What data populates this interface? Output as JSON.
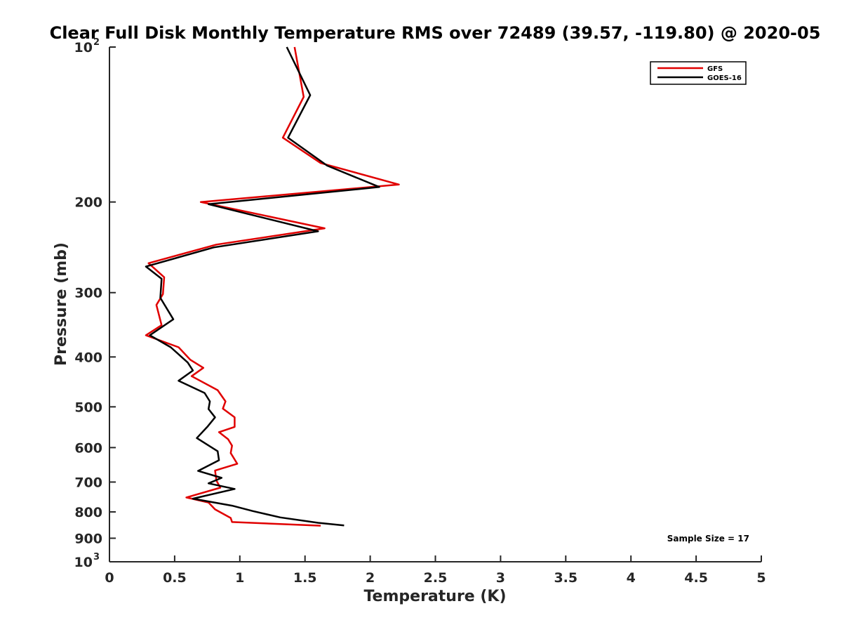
{
  "chart_data": {
    "type": "line",
    "title": "Clear Full Disk Monthly Temperature RMS over 72489 (39.57, -119.80) @ 2020-05",
    "xlabel": "Temperature (K)",
    "ylabel": "Pressure (mb)",
    "xlim": [
      0,
      5
    ],
    "ylim": [
      100,
      1000
    ],
    "yscale": "log",
    "y_reversed": true,
    "grid": false,
    "legend_position": "top-right",
    "x_ticks": [
      {
        "value": 0,
        "label": "0"
      },
      {
        "value": 0.5,
        "label": "0.5"
      },
      {
        "value": 1,
        "label": "1"
      },
      {
        "value": 1.5,
        "label": "1.5"
      },
      {
        "value": 2,
        "label": "2"
      },
      {
        "value": 2.5,
        "label": "2.5"
      },
      {
        "value": 3,
        "label": "3"
      },
      {
        "value": 3.5,
        "label": "3.5"
      },
      {
        "value": 4,
        "label": "4"
      },
      {
        "value": 4.5,
        "label": "4.5"
      },
      {
        "value": 5,
        "label": "5"
      }
    ],
    "y_ticks": [
      {
        "value": 100,
        "label": "10",
        "exp": "2"
      },
      {
        "value": 200,
        "label": "200"
      },
      {
        "value": 300,
        "label": "300"
      },
      {
        "value": 400,
        "label": "400"
      },
      {
        "value": 500,
        "label": "500"
      },
      {
        "value": 600,
        "label": "600"
      },
      {
        "value": 700,
        "label": "700"
      },
      {
        "value": 800,
        "label": "800"
      },
      {
        "value": 900,
        "label": "900"
      },
      {
        "value": 1000,
        "label": "10",
        "exp": "3"
      }
    ],
    "series": [
      {
        "name": "GFS",
        "color": "#e00000",
        "points": [
          [
            1.42,
            100
          ],
          [
            1.49,
            125
          ],
          [
            1.33,
            150
          ],
          [
            1.62,
            168
          ],
          [
            2.22,
            185
          ],
          [
            0.7,
            200
          ],
          [
            1.65,
            225
          ],
          [
            0.82,
            242
          ],
          [
            0.3,
            263
          ],
          [
            0.42,
            280
          ],
          [
            0.41,
            302
          ],
          [
            0.36,
            317
          ],
          [
            0.4,
            347
          ],
          [
            0.28,
            363
          ],
          [
            0.53,
            383
          ],
          [
            0.62,
            405
          ],
          [
            0.72,
            420
          ],
          [
            0.63,
            436
          ],
          [
            0.83,
            464
          ],
          [
            0.89,
            488
          ],
          [
            0.87,
            504
          ],
          [
            0.96,
            524
          ],
          [
            0.96,
            547
          ],
          [
            0.84,
            560
          ],
          [
            0.91,
            578
          ],
          [
            0.94,
            595
          ],
          [
            0.93,
            615
          ],
          [
            0.98,
            645
          ],
          [
            0.81,
            665
          ],
          [
            0.82,
            695
          ],
          [
            0.85,
            718
          ],
          [
            0.59,
            750
          ],
          [
            0.76,
            767
          ],
          [
            0.81,
            791
          ],
          [
            0.93,
            822
          ],
          [
            0.94,
            837
          ],
          [
            1.62,
            851
          ]
        ]
      },
      {
        "name": "GOES-16",
        "color": "#000000",
        "points": [
          [
            1.36,
            100
          ],
          [
            1.54,
            124
          ],
          [
            1.37,
            150
          ],
          [
            1.67,
            170
          ],
          [
            2.07,
            187
          ],
          [
            0.76,
            202
          ],
          [
            1.6,
            228
          ],
          [
            0.8,
            245
          ],
          [
            0.28,
            267
          ],
          [
            0.4,
            282
          ],
          [
            0.39,
            307
          ],
          [
            0.49,
            338
          ],
          [
            0.31,
            363
          ],
          [
            0.47,
            383
          ],
          [
            0.6,
            410
          ],
          [
            0.64,
            425
          ],
          [
            0.53,
            445
          ],
          [
            0.73,
            470
          ],
          [
            0.77,
            488
          ],
          [
            0.76,
            505
          ],
          [
            0.81,
            524
          ],
          [
            0.75,
            547
          ],
          [
            0.67,
            575
          ],
          [
            0.83,
            610
          ],
          [
            0.84,
            635
          ],
          [
            0.68,
            666
          ],
          [
            0.86,
            687
          ],
          [
            0.76,
            704
          ],
          [
            0.96,
            722
          ],
          [
            0.64,
            754
          ],
          [
            0.94,
            778
          ],
          [
            1.1,
            797
          ],
          [
            1.31,
            820
          ],
          [
            1.6,
            840
          ],
          [
            1.8,
            850
          ]
        ]
      }
    ],
    "annotations": [
      "Sample Size = 17"
    ]
  }
}
